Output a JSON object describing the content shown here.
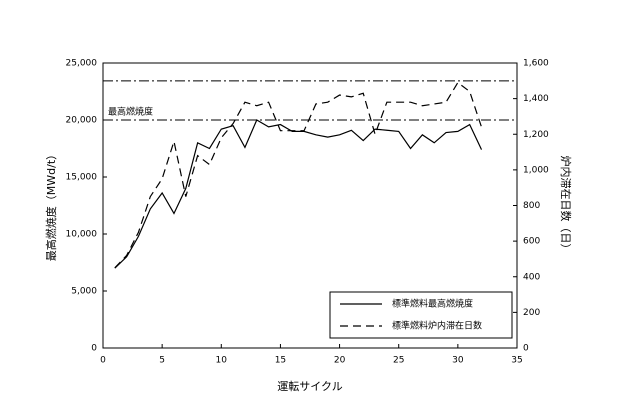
{
  "chart_data": {
    "type": "line",
    "x": [
      1,
      2,
      3,
      4,
      5,
      6,
      7,
      8,
      9,
      10,
      11,
      12,
      13,
      14,
      15,
      16,
      17,
      18,
      19,
      20,
      21,
      22,
      23,
      24,
      25,
      26,
      27,
      28,
      29,
      30,
      31,
      32
    ],
    "series": [
      {
        "name": "標準燃料最高燃焼度",
        "color": "#000000",
        "dash": "solid",
        "axis": "y",
        "values": [
          7000,
          8000,
          9800,
          12200,
          13600,
          11800,
          14000,
          18000,
          17500,
          19200,
          19500,
          17600,
          20000,
          19400,
          19600,
          19000,
          19000,
          18700,
          18500,
          18700,
          19100,
          18200,
          19200,
          19100,
          19000,
          17500,
          18700,
          18000,
          18900,
          19000,
          19600,
          17400
        ]
      },
      {
        "name": "標準燃料炉内滞在日数",
        "color": "#000000",
        "dash": "dashed",
        "axis": "y2",
        "values": [
          450,
          520,
          650,
          850,
          950,
          1160,
          850,
          1080,
          1030,
          1180,
          1260,
          1380,
          1360,
          1380,
          1220,
          1220,
          1220,
          1370,
          1380,
          1420,
          1410,
          1430,
          1200,
          1380,
          1380,
          1380,
          1360,
          1370,
          1380,
          1490,
          1440,
          1240
        ]
      }
    ],
    "xlabel": "運転サイクル",
    "ylabel": "最高燃焼度（MWd/t）",
    "y2label": "炉内滞在日数（日）",
    "xlim": [
      0,
      35
    ],
    "xticks": [
      0,
      5,
      10,
      15,
      20,
      25,
      30,
      35
    ],
    "ylim": [
      0,
      25000
    ],
    "yticks": [
      0,
      {
        "value": 5000,
        "label": "5,000"
      },
      {
        "value": 10000,
        "label": "10,000"
      },
      {
        "value": 15000,
        "label": "15,000"
      },
      {
        "value": 20000,
        "label": "20,000"
      },
      {
        "value": 25000,
        "label": "25,000"
      }
    ],
    "y2lim": [
      0,
      1600
    ],
    "y2ticks": [
      0,
      200,
      400,
      600,
      800,
      {
        "value": 1000,
        "label": "1,000"
      },
      {
        "value": 1200,
        "label": "1,200"
      },
      {
        "value": 1400,
        "label": "1,400"
      },
      {
        "value": 1600,
        "label": "1,600"
      }
    ],
    "reference_lines": [
      {
        "value": 20000,
        "axis": "y",
        "label": "最高燃焼度"
      },
      {
        "value": 1500,
        "axis": "y2"
      }
    ],
    "grid": false,
    "legend": "lower right"
  }
}
